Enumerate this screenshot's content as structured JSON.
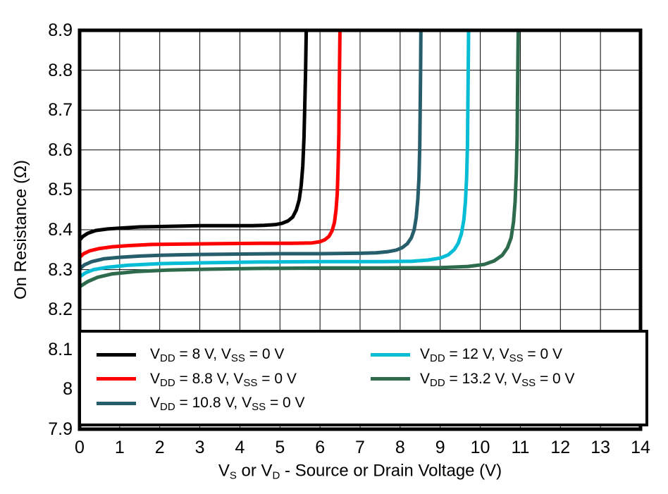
{
  "figure": {
    "background": "#FFFFFF",
    "grid_color": "#000000",
    "border_color": "#000000"
  },
  "chart_data": {
    "type": "line",
    "title": "",
    "ylabel": "On Resistance (Ω)",
    "xlabel_text": "VS or VD - Source or Drain Voltage (V)",
    "xlabel_parts": [
      [
        "V",
        0
      ],
      [
        "S",
        1
      ],
      [
        " or V",
        0
      ],
      [
        "D",
        1
      ],
      [
        " - Source or Drain Voltage (V)",
        0
      ]
    ],
    "xlim": [
      0,
      14
    ],
    "ylim": [
      7.9,
      8.9
    ],
    "grid": true,
    "legend_position": "bottom-inside",
    "xticks": [
      {
        "v": 0,
        "label": "0"
      },
      {
        "v": 1,
        "label": "1"
      },
      {
        "v": 2,
        "label": "2"
      },
      {
        "v": 3,
        "label": "3"
      },
      {
        "v": 4,
        "label": "4"
      },
      {
        "v": 5,
        "label": "5"
      },
      {
        "v": 6,
        "label": "6"
      },
      {
        "v": 7,
        "label": "7"
      },
      {
        "v": 8,
        "label": "8"
      },
      {
        "v": 9,
        "label": "9"
      },
      {
        "v": 10,
        "label": "10"
      },
      {
        "v": 11,
        "label": "11"
      },
      {
        "v": 12,
        "label": "12"
      },
      {
        "v": 13,
        "label": "13"
      },
      {
        "v": 14,
        "label": "14"
      }
    ],
    "yticks": [
      {
        "v": 8.9,
        "label": "8.9"
      },
      {
        "v": 8.8,
        "label": "8.8"
      },
      {
        "v": 8.7,
        "label": "8.7"
      },
      {
        "v": 8.6,
        "label": "8.6"
      },
      {
        "v": 8.5,
        "label": "8.5"
      },
      {
        "v": 8.4,
        "label": "8.4"
      },
      {
        "v": 8.3,
        "label": "8.3"
      },
      {
        "v": 8.2,
        "label": "8.2"
      },
      {
        "v": 8.1,
        "label": "8.1"
      },
      {
        "v": 8.0,
        "label": "8"
      },
      {
        "v": 7.9,
        "label": "7.9"
      }
    ],
    "legend_columns": [
      [
        0,
        1,
        2
      ],
      [
        3,
        4
      ]
    ],
    "series": [
      {
        "name": "VDD = 8 V, VSS = 0 V",
        "color": "#000000",
        "label_parts": [
          [
            "V",
            0
          ],
          [
            "DD",
            1
          ],
          [
            " = 8 V, ",
            0
          ],
          [
            "V",
            0
          ],
          [
            "SS",
            1
          ],
          [
            " = 0 V",
            0
          ]
        ],
        "points": [
          [
            0,
            8.374
          ],
          [
            0.08,
            8.383
          ],
          [
            0.2,
            8.391
          ],
          [
            0.4,
            8.398
          ],
          [
            0.7,
            8.402
          ],
          [
            1,
            8.404
          ],
          [
            1.5,
            8.407
          ],
          [
            2,
            8.408
          ],
          [
            2.5,
            8.409
          ],
          [
            3,
            8.41
          ],
          [
            3.5,
            8.41
          ],
          [
            4,
            8.41
          ],
          [
            4.3,
            8.41
          ],
          [
            4.6,
            8.411
          ],
          [
            4.9,
            8.413
          ],
          [
            5.05,
            8.416
          ],
          [
            5.2,
            8.422
          ],
          [
            5.32,
            8.432
          ],
          [
            5.41,
            8.45
          ],
          [
            5.48,
            8.475
          ],
          [
            5.53,
            8.51
          ],
          [
            5.57,
            8.56
          ],
          [
            5.6,
            8.63
          ],
          [
            5.62,
            8.71
          ],
          [
            5.64,
            8.8
          ],
          [
            5.66,
            8.92
          ]
        ]
      },
      {
        "name": "VDD = 8.8 V, VSS = 0 V",
        "color": "#FF0000",
        "label_parts": [
          [
            "V",
            0
          ],
          [
            "DD",
            1
          ],
          [
            " = 8.8 V, ",
            0
          ],
          [
            "V",
            0
          ],
          [
            "SS",
            1
          ],
          [
            " = 0 V",
            0
          ]
        ],
        "points": [
          [
            0,
            8.331
          ],
          [
            0.1,
            8.34
          ],
          [
            0.25,
            8.347
          ],
          [
            0.5,
            8.353
          ],
          [
            0.8,
            8.357
          ],
          [
            1.2,
            8.36
          ],
          [
            1.8,
            8.363
          ],
          [
            2.5,
            8.364
          ],
          [
            3.5,
            8.365
          ],
          [
            4.5,
            8.366
          ],
          [
            5.3,
            8.366
          ],
          [
            5.8,
            8.367
          ],
          [
            6.0,
            8.37
          ],
          [
            6.12,
            8.375
          ],
          [
            6.22,
            8.383
          ],
          [
            6.3,
            8.397
          ],
          [
            6.36,
            8.418
          ],
          [
            6.4,
            8.45
          ],
          [
            6.43,
            8.49
          ],
          [
            6.45,
            8.55
          ],
          [
            6.47,
            8.64
          ],
          [
            6.48,
            8.74
          ],
          [
            6.49,
            8.83
          ],
          [
            6.5,
            8.92
          ]
        ]
      },
      {
        "name": "VDD = 10.8 V, VSS = 0 V",
        "color": "#275E6B",
        "label_parts": [
          [
            "V",
            0
          ],
          [
            "DD",
            1
          ],
          [
            " = 10.8 V, ",
            0
          ],
          [
            "V",
            0
          ],
          [
            "SS",
            1
          ],
          [
            " = 0 V",
            0
          ]
        ],
        "points": [
          [
            0,
            8.302
          ],
          [
            0.12,
            8.312
          ],
          [
            0.3,
            8.32
          ],
          [
            0.6,
            8.327
          ],
          [
            1,
            8.331
          ],
          [
            1.5,
            8.334
          ],
          [
            2,
            8.336
          ],
          [
            3,
            8.338
          ],
          [
            4,
            8.339
          ],
          [
            5,
            8.34
          ],
          [
            6,
            8.34
          ],
          [
            7,
            8.341
          ],
          [
            7.4,
            8.342
          ],
          [
            7.7,
            8.345
          ],
          [
            7.9,
            8.349
          ],
          [
            8.05,
            8.355
          ],
          [
            8.18,
            8.365
          ],
          [
            8.28,
            8.38
          ],
          [
            8.35,
            8.4
          ],
          [
            8.4,
            8.43
          ],
          [
            8.44,
            8.475
          ],
          [
            8.47,
            8.53
          ],
          [
            8.49,
            8.61
          ],
          [
            8.5,
            8.7
          ],
          [
            8.51,
            8.8
          ],
          [
            8.52,
            8.92
          ]
        ]
      },
      {
        "name": "VDD = 12 V, VSS = 0 V",
        "color": "#07BDD6",
        "label_parts": [
          [
            "V",
            0
          ],
          [
            "DD",
            1
          ],
          [
            " = 12 V, ",
            0
          ],
          [
            "V",
            0
          ],
          [
            "SS",
            1
          ],
          [
            " = 0 V",
            0
          ]
        ],
        "points": [
          [
            0,
            8.282
          ],
          [
            0.15,
            8.292
          ],
          [
            0.35,
            8.3
          ],
          [
            0.7,
            8.306
          ],
          [
            1.2,
            8.311
          ],
          [
            2,
            8.315
          ],
          [
            3,
            8.317
          ],
          [
            4.5,
            8.319
          ],
          [
            6,
            8.32
          ],
          [
            7.5,
            8.32
          ],
          [
            8.3,
            8.321
          ],
          [
            8.7,
            8.324
          ],
          [
            9.0,
            8.329
          ],
          [
            9.2,
            8.337
          ],
          [
            9.35,
            8.35
          ],
          [
            9.45,
            8.366
          ],
          [
            9.53,
            8.39
          ],
          [
            9.59,
            8.425
          ],
          [
            9.63,
            8.47
          ],
          [
            9.66,
            8.53
          ],
          [
            9.68,
            8.61
          ],
          [
            9.69,
            8.7
          ],
          [
            9.7,
            8.8
          ],
          [
            9.71,
            8.92
          ]
        ]
      },
      {
        "name": "VDD = 13.2 V, VSS = 0 V",
        "color": "#2E6B4C",
        "label_parts": [
          [
            "V",
            0
          ],
          [
            "DD",
            1
          ],
          [
            " = 13.2 V, ",
            0
          ],
          [
            "V",
            0
          ],
          [
            "SS",
            1
          ],
          [
            " = 0 V",
            0
          ]
        ],
        "points": [
          [
            0,
            8.257
          ],
          [
            0.2,
            8.27
          ],
          [
            0.45,
            8.281
          ],
          [
            0.8,
            8.289
          ],
          [
            1.4,
            8.295
          ],
          [
            2.2,
            8.299
          ],
          [
            3.2,
            8.301
          ],
          [
            4.5,
            8.303
          ],
          [
            6,
            8.304
          ],
          [
            7.5,
            8.304
          ],
          [
            9,
            8.305
          ],
          [
            9.7,
            8.308
          ],
          [
            10.1,
            8.313
          ],
          [
            10.35,
            8.322
          ],
          [
            10.55,
            8.336
          ],
          [
            10.68,
            8.355
          ],
          [
            10.77,
            8.38
          ],
          [
            10.83,
            8.42
          ],
          [
            10.87,
            8.47
          ],
          [
            10.9,
            8.54
          ],
          [
            10.92,
            8.63
          ],
          [
            10.93,
            8.73
          ],
          [
            10.94,
            8.83
          ],
          [
            10.95,
            8.92
          ]
        ]
      }
    ]
  }
}
